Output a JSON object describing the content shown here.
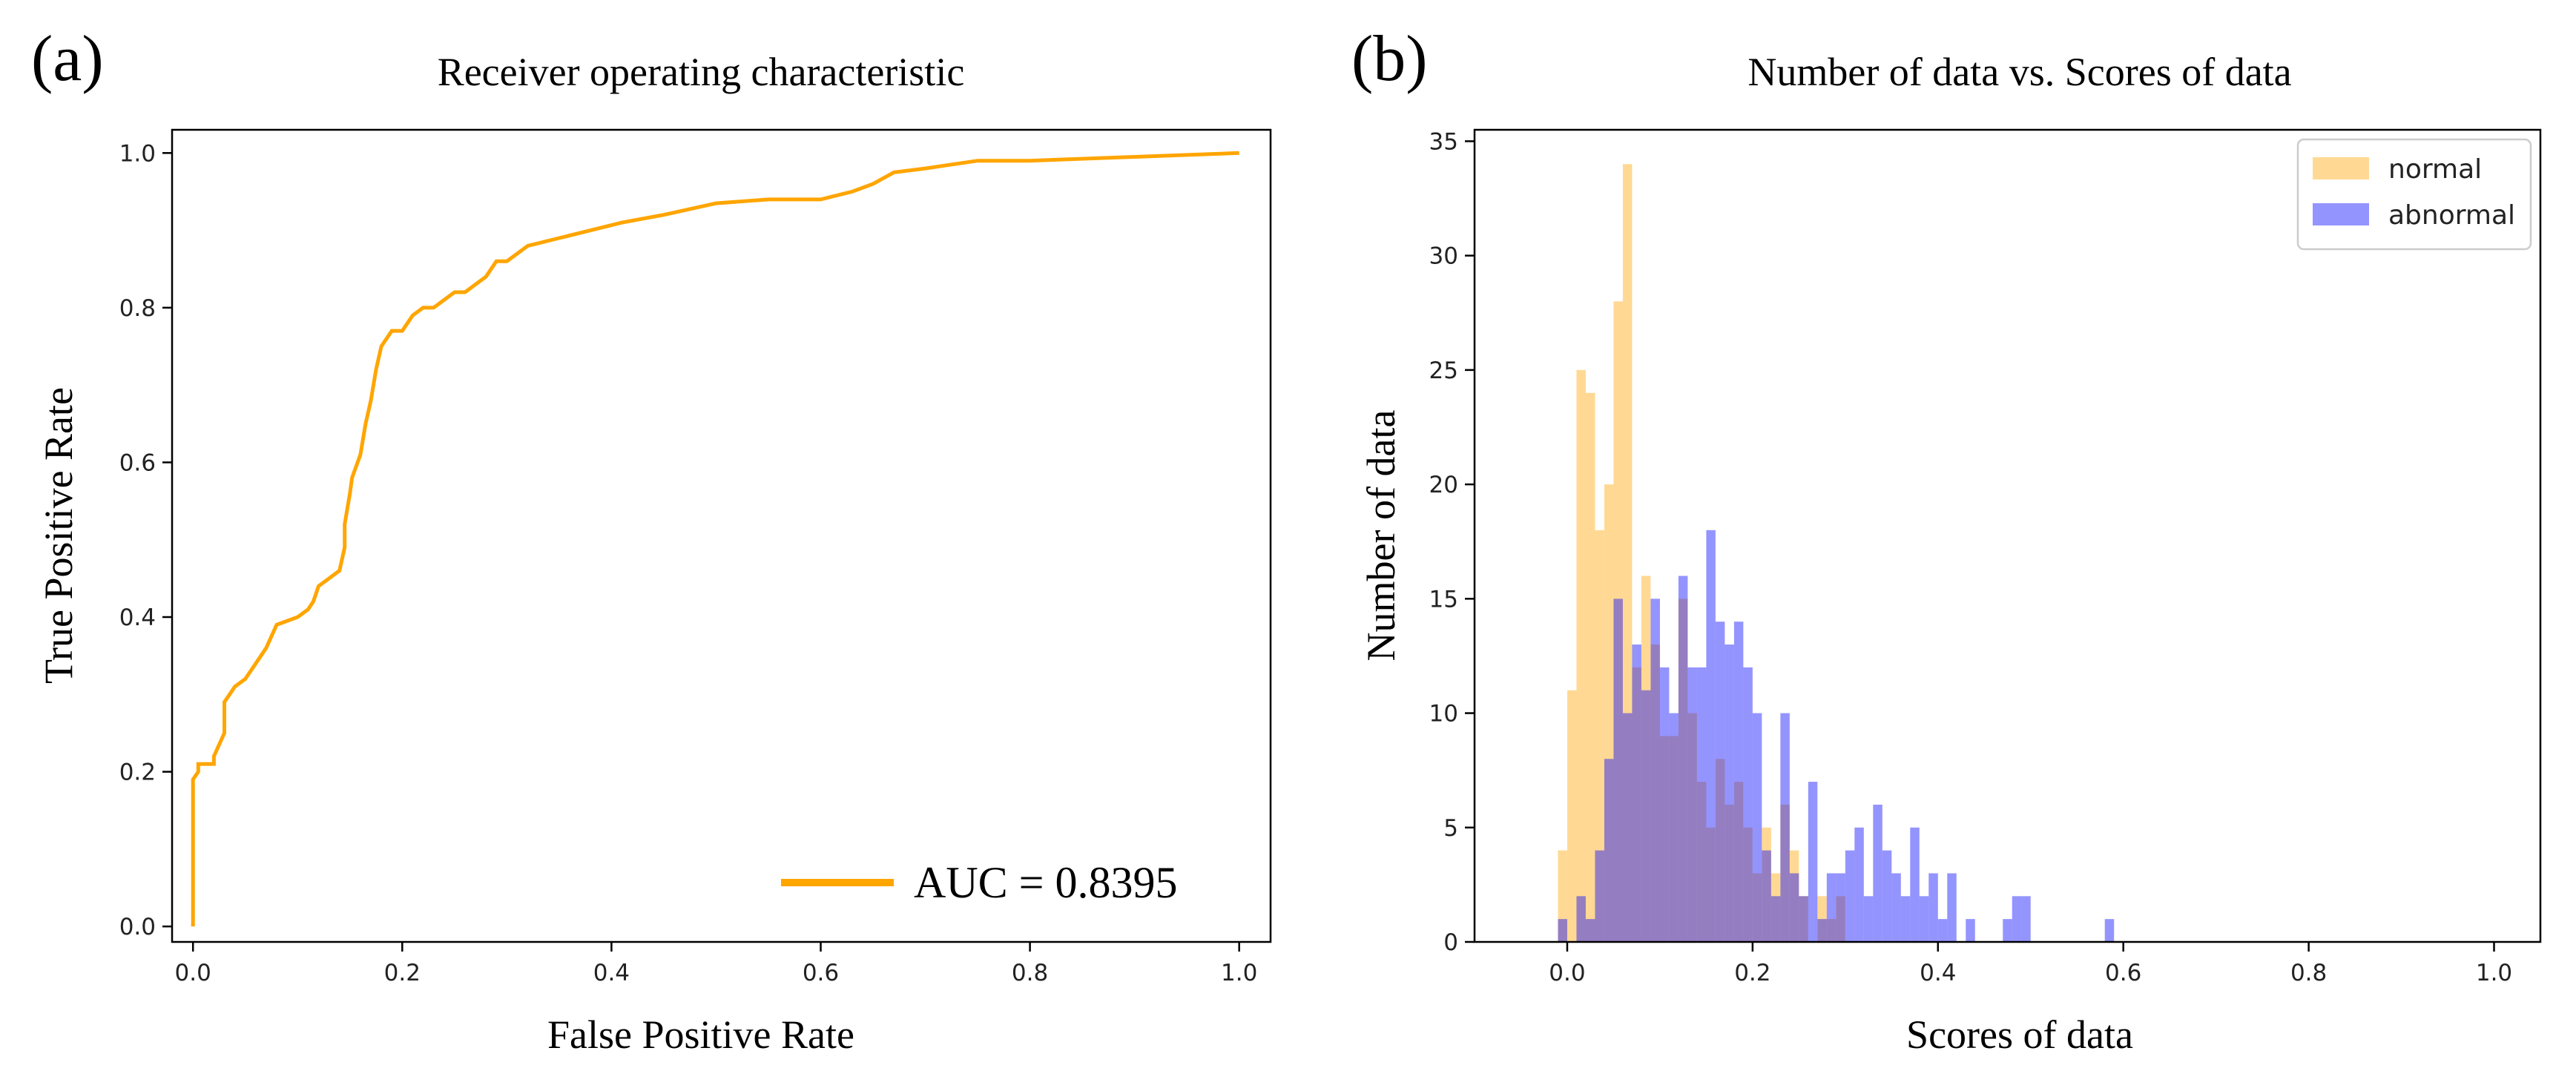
{
  "chart_data": [
    {
      "type": "line",
      "panel_label": "(a)",
      "title": "Receiver operating characteristic",
      "xlabel": "False Positive Rate",
      "ylabel": "True Positive Rate",
      "xlim": [
        -0.02,
        1.03
      ],
      "ylim": [
        -0.02,
        1.03
      ],
      "xticks": [
        "0.0",
        "0.2",
        "0.4",
        "0.6",
        "0.8",
        "1.0"
      ],
      "yticks": [
        "0.0",
        "0.2",
        "0.4",
        "0.6",
        "0.8",
        "1.0"
      ],
      "grid": false,
      "legend_position": "lower-right",
      "colors": {
        "roc": "#ffa500"
      },
      "series": [
        {
          "name": "AUC = 0.8395",
          "x": [
            0.0,
            0.0,
            0.005,
            0.005,
            0.02,
            0.02,
            0.03,
            0.03,
            0.04,
            0.05,
            0.06,
            0.07,
            0.08,
            0.1,
            0.11,
            0.115,
            0.12,
            0.13,
            0.14,
            0.145,
            0.145,
            0.15,
            0.152,
            0.16,
            0.165,
            0.17,
            0.175,
            0.18,
            0.19,
            0.2,
            0.21,
            0.22,
            0.23,
            0.25,
            0.26,
            0.28,
            0.29,
            0.3,
            0.32,
            0.35,
            0.38,
            0.41,
            0.45,
            0.5,
            0.55,
            0.6,
            0.63,
            0.65,
            0.67,
            0.7,
            0.75,
            0.8,
            0.9,
            1.0
          ],
          "y": [
            0.0,
            0.19,
            0.2,
            0.21,
            0.21,
            0.22,
            0.25,
            0.29,
            0.31,
            0.32,
            0.34,
            0.36,
            0.39,
            0.4,
            0.41,
            0.42,
            0.44,
            0.45,
            0.46,
            0.49,
            0.52,
            0.56,
            0.58,
            0.61,
            0.65,
            0.68,
            0.72,
            0.75,
            0.77,
            0.77,
            0.79,
            0.8,
            0.8,
            0.82,
            0.82,
            0.84,
            0.86,
            0.86,
            0.88,
            0.89,
            0.9,
            0.91,
            0.92,
            0.935,
            0.94,
            0.94,
            0.95,
            0.96,
            0.975,
            0.98,
            0.99,
            0.99,
            0.995,
            1.0
          ]
        }
      ]
    },
    {
      "type": "bar",
      "subtype": "histogram",
      "panel_label": "(b)",
      "title": "Number of data vs. Scores of data",
      "xlabel": "Scores of data",
      "ylabel": "Number of data",
      "xlim": [
        -0.1,
        1.05
      ],
      "ylim": [
        0,
        35.5
      ],
      "xticks": [
        "0.0",
        "0.2",
        "0.4",
        "0.6",
        "0.8",
        "1.0"
      ],
      "yticks": [
        "0",
        "5",
        "10",
        "15",
        "20",
        "25",
        "30",
        "35"
      ],
      "grid": false,
      "legend_position": "top-right",
      "bin_start": -0.01,
      "bin_width": 0.01,
      "series": [
        {
          "name": "normal",
          "color": "#ffa500",
          "opacity": 0.42,
          "values": [
            4,
            11,
            25,
            24,
            18,
            20,
            28,
            34,
            12,
            16,
            13,
            9,
            9,
            15,
            10,
            7,
            5,
            8,
            6,
            7,
            5,
            3,
            5,
            3,
            6,
            4,
            2,
            0,
            2,
            1,
            2
          ]
        },
        {
          "name": "abnormal",
          "color": "#0000ff",
          "opacity": 0.42,
          "values": [
            1,
            0,
            2,
            1,
            4,
            8,
            15,
            10,
            13,
            11,
            15,
            12,
            10,
            16,
            12,
            12,
            18,
            14,
            13,
            14,
            12,
            10,
            4,
            2,
            10,
            3,
            2,
            7,
            1,
            3,
            3,
            4,
            5,
            2,
            6,
            4,
            3,
            2,
            5,
            2,
            3,
            1,
            3,
            0,
            1,
            0,
            0,
            0,
            1,
            2,
            2,
            0,
            0,
            0,
            0,
            0,
            0,
            0,
            0,
            1
          ]
        }
      ]
    }
  ]
}
